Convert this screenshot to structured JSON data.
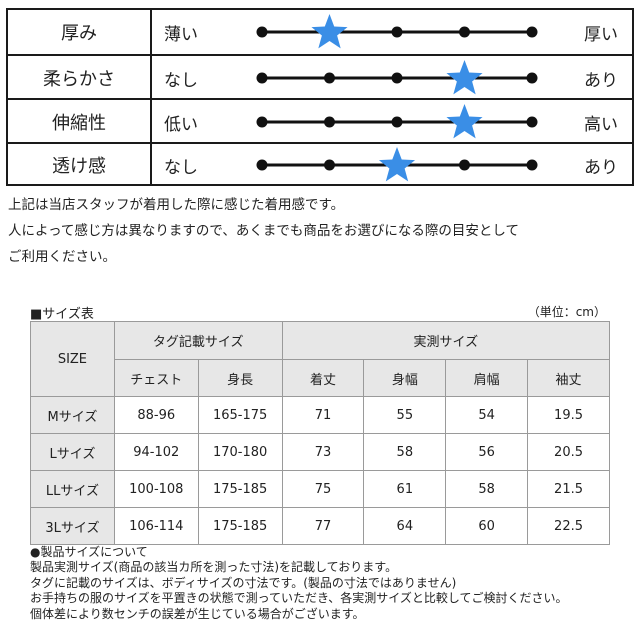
{
  "feel": [
    {
      "label": "厚み",
      "low": "薄い",
      "high": "厚い",
      "level": 2
    },
    {
      "label": "柔らかさ",
      "low": "なし",
      "high": "あり",
      "level": 4
    },
    {
      "label": "伸縮性",
      "low": "低い",
      "high": "高い",
      "level": 4
    },
    {
      "label": "透け感",
      "low": "なし",
      "high": "あり",
      "level": 3
    }
  ],
  "colors": {
    "star": "#3a8ee6",
    "line": "#111111",
    "header_bg": "#e7e7e7"
  },
  "note": {
    "lines": [
      "上記は当店スタッフが着用した際に感じた着用感です。",
      "人によって感じ方は異なりますので、あくまでも商品をお選びになる際の目安として",
      "ご利用ください。"
    ]
  },
  "size_chart": {
    "title": "■サイズ表",
    "unit": "（単位：cm）",
    "size_header": "SIZE",
    "group_tag": "タグ記載サイズ",
    "group_actual": "実測サイズ",
    "columns": [
      "チェスト",
      "身長",
      "着丈",
      "身幅",
      "肩幅",
      "袖丈"
    ],
    "rows": [
      {
        "size": "Mサイズ",
        "values": [
          "88-96",
          "165-175",
          "71",
          "55",
          "54",
          "19.5"
        ]
      },
      {
        "size": "Lサイズ",
        "values": [
          "94-102",
          "170-180",
          "73",
          "58",
          "56",
          "20.5"
        ]
      },
      {
        "size": "LLサイズ",
        "values": [
          "100-108",
          "175-185",
          "75",
          "61",
          "58",
          "21.5"
        ]
      },
      {
        "size": "3Lサイズ",
        "values": [
          "106-114",
          "175-185",
          "77",
          "64",
          "60",
          "22.5"
        ]
      }
    ]
  },
  "footnotes": [
    "●製品サイズについて",
    "製品実測サイズ(商品の該当カ所を測った寸法)を記載しております。",
    "タグに記載のサイズは、ボディサイズの寸法です。(製品の寸法ではありません)",
    "お手持ちの服のサイズを平置きの状態で測っていただき、各実測サイズと比較してご検討ください。",
    "個体差により数センチの誤差が生じている場合がございます。"
  ]
}
